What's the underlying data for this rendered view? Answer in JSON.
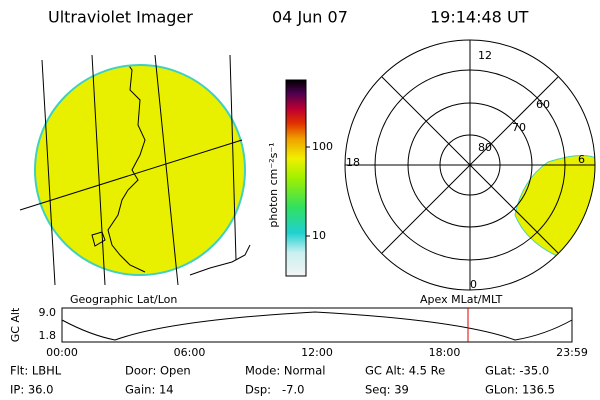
{
  "header": {
    "instrument": "Ultraviolet Imager",
    "date": "04 Jun 07",
    "time": "19:14:48 UT"
  },
  "colorbar": {
    "label": "photon cm⁻²s⁻¹",
    "ticks": [
      "100",
      "10"
    ]
  },
  "polar": {
    "mlt_labels": [
      "12",
      "18",
      "6",
      "0"
    ],
    "lat_labels": [
      "80",
      "70",
      "60"
    ]
  },
  "panels": {
    "left": "Geographic Lat/Lon",
    "right": "Apex MLat/MLT"
  },
  "timeline": {
    "ylabel": "GC Alt",
    "yticks": [
      "9.0",
      "1.8"
    ],
    "xticks": [
      "00:00",
      "06:00",
      "12:00",
      "18:00",
      "23:59"
    ]
  },
  "info": [
    [
      "Flt: LBHL",
      "Door: Open",
      "Mode: Normal",
      "GC Alt: 4.5 Re",
      "GLat: -35.0"
    ],
    [
      "IP: 36.0",
      "Gain: 14",
      "Dsp:   -7.0",
      "Seq: 39",
      "GLon: 136.5"
    ]
  ]
}
